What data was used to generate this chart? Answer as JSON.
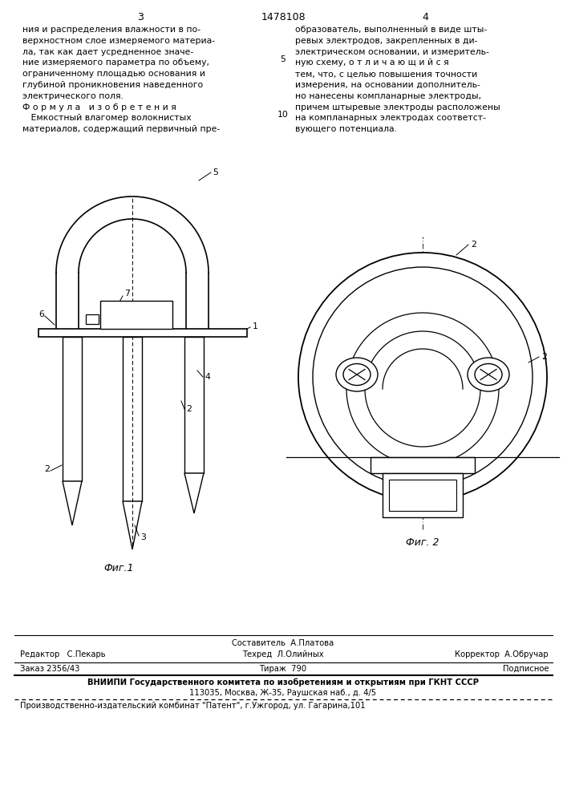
{
  "title_number": "1478108",
  "page_left": "3",
  "page_right": "4",
  "text_left_col": [
    "ния и распределения влажности в по-",
    "верхностном слое измеряемого материа-",
    "ла, так как дает усредненное значе-",
    "ние измеряемого параметра по объему,",
    "ограниченному площадью основания и",
    "глубиной проникновения наведенного",
    "электрического поля.",
    "Ф о р м у л а   и з о б р е т е н и я",
    "   Емкостный влагомер волокнистых",
    "материалов, содержащий первичный пре-"
  ],
  "text_right_col": [
    "образователь, выполненный в виде шты-",
    "ревых электродов, закрепленных в ди-",
    "электрическом основании, и измеритель-",
    "ную схему, о т л и ч а ю щ и й с я",
    "тем, что, с целью повышения точности",
    "измерения, на основании дополнитель-",
    "но нанесены компланарные электроды,",
    "причем штыревые электроды расположены",
    "на компланарных электродах соответст-",
    "вующего потенциала."
  ],
  "fig1_caption": "Фиг.1",
  "fig2_caption": "Фиг. 2",
  "footer_line1_left": "Редактор   С.Пекарь",
  "footer_line1_center_1": "Составитель  А.Платова",
  "footer_line1_center_2": "Техред  Л.Олийных",
  "footer_line1_right": "Корректор  А.Обручар",
  "footer_line2_left": "Заказ 2356/43",
  "footer_line2_center": "Тираж  790",
  "footer_line2_right": "Подписное",
  "footer_vnipi": "ВНИИПИ Государственного комитета по изобретениям и открытиям при ГКНТ СССР",
  "footer_address": "113035, Москва, Ж-35, Раушская наб., д. 4/5",
  "footer_printer": "Производственно-издательский комбинат \"Патент\", г.Ужгород, ул. Гагарина,101"
}
